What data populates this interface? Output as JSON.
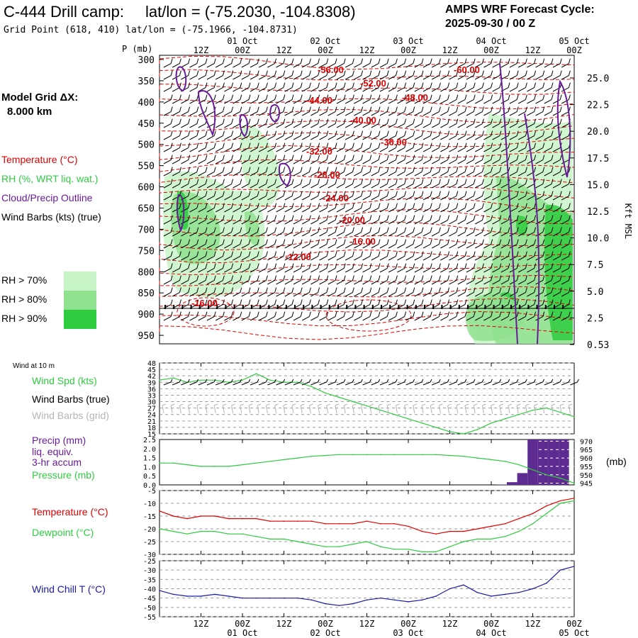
{
  "header": {
    "station": "C-444 Drill camp:",
    "latlon": "lat/lon = (-75.2030, -104.8308)",
    "gridpoint": "Grid Point (618, 410) lat/lon = (-75.1966, -104.8731)",
    "model": "AMPS WRF Forecast Cycle:",
    "cycle": "2025-09-30 / 00  Z"
  },
  "legend": {
    "grid_title": "Model Grid ΔX:",
    "grid_value": "8.000 km",
    "temperature": "Temperature (°C)",
    "rh": "RH (%, WRT liq. wat.)",
    "cloud": "Cloud/Precip Outline",
    "wind": "Wind Barbs (kts) (true)",
    "rh70": "RH > 70%",
    "rh80": "RH > 80%",
    "rh90": "RH > 90%",
    "colors": {
      "rh70": "#c8f5c8",
      "rh80": "#8fe08f",
      "rh90": "#2ecc40",
      "temp": "#e00000",
      "cloud": "#6a1b9a"
    }
  },
  "time_axis": {
    "days_top": [
      "01 Oct",
      "02 Oct",
      "03 Oct",
      "04 Oct",
      "05 Oct"
    ],
    "hours": [
      "12Z",
      "00Z",
      "12Z",
      "00Z",
      "12Z",
      "00Z",
      "12Z",
      "00Z",
      "12Z",
      "00Z"
    ],
    "days_bottom": [
      "01 Oct",
      "02 Oct",
      "03 Oct",
      "04 Oct",
      "05 Oct"
    ]
  },
  "chart_data": [
    {
      "type": "cross-section",
      "ylabel": "P (mb)",
      "ylabel_right": "Kft MSL",
      "pressure_ticks": [
        300,
        350,
        400,
        450,
        500,
        550,
        600,
        650,
        700,
        750,
        800,
        850,
        900,
        950
      ],
      "height_ticks": [
        "25.0",
        "22.5",
        "20.0",
        "17.5",
        "15.0",
        "12.5",
        "10.0",
        "7.5",
        "5.0",
        "2.5",
        "0.53"
      ],
      "temp_labels": [
        "-56.00",
        "-60.00",
        "-52.00",
        "-44.00",
        "-48.00",
        "-40.00",
        "-36.00",
        "-32.00",
        "-28.00",
        "-24.00",
        "-20.00",
        "-16.00",
        "-12.00",
        "-16.00"
      ]
    },
    {
      "type": "line",
      "title": "Wind at 10 m",
      "label_speed": "Wind Spd (kts)",
      "label_true": "Wind Barbs (true)",
      "label_grid": "Wind Barbs (grid)",
      "y_ticks": [
        48,
        45,
        42,
        39,
        36,
        33,
        30,
        27,
        24,
        21,
        18,
        15
      ],
      "ylim": [
        15,
        48
      ],
      "x_hours": [
        -24,
        -20,
        -16,
        -12,
        -8,
        -4,
        0,
        4,
        8,
        12,
        16,
        20,
        24,
        28,
        32,
        36,
        40,
        44,
        48,
        52,
        56,
        60,
        64,
        68,
        72,
        76,
        80,
        84,
        88,
        92,
        96
      ],
      "values": [
        40,
        41,
        39,
        40,
        40,
        39,
        40,
        43,
        40,
        39,
        39,
        37,
        34,
        32,
        30,
        28,
        26,
        24,
        22,
        20,
        18,
        16,
        15,
        17,
        20,
        22,
        24,
        26,
        27,
        25,
        23
      ]
    },
    {
      "type": "bar+line",
      "label_precip": "Precip (mm)",
      "label_liq": "liq. equiv.",
      "label_accum": "3-hr accum",
      "label_pressure": "Pressure (mb)",
      "unit_right": "(mb)",
      "precip_ticks": [
        "2.5",
        "2.0",
        "1.5",
        "1.0",
        "0.5",
        "0.0"
      ],
      "pressure_ticks": [
        970,
        965,
        960,
        955,
        950,
        945
      ],
      "precip_ylim": [
        0,
        2.5
      ],
      "pressure_ylim": [
        944,
        971
      ],
      "precip_bars": [
        {
          "x": 75,
          "v": 0.02
        },
        {
          "x": 78,
          "v": 0.15
        },
        {
          "x": 81,
          "v": 0.65
        },
        {
          "x": 84,
          "v": 2.5
        },
        {
          "x": 87,
          "v": 2.5
        },
        {
          "x": 90,
          "v": 2.5
        },
        {
          "x": 93,
          "v": 2.5
        }
      ],
      "pressure_values": [
        957,
        957,
        956,
        955,
        955,
        955,
        956,
        957,
        958,
        959,
        960,
        961,
        961.5,
        962,
        962,
        962,
        962,
        962,
        962,
        962,
        962,
        961.5,
        961,
        960,
        959,
        958,
        956,
        953,
        950,
        948,
        945
      ]
    },
    {
      "type": "line",
      "label_temp": "Temperature (°C)",
      "label_dew": "Dewpoint (°C)",
      "y_ticks": [
        -5,
        -10,
        -15,
        -20,
        -25,
        -30
      ],
      "ylim": [
        -30,
        -5
      ],
      "temperature": [
        -13,
        -15,
        -16,
        -15,
        -15,
        -16,
        -16,
        -16,
        -17,
        -17,
        -17,
        -17,
        -18,
        -18,
        -18,
        -17,
        -18,
        -18,
        -19,
        -21,
        -22,
        -21,
        -21,
        -20,
        -19,
        -18,
        -16,
        -14,
        -11,
        -9,
        -8
      ],
      "dewpoint": [
        -20,
        -21,
        -22,
        -21,
        -21,
        -22,
        -22,
        -23,
        -24,
        -24,
        -25,
        -26,
        -27,
        -27,
        -26,
        -25,
        -27,
        -28,
        -28,
        -29,
        -29,
        -27,
        -25,
        -24,
        -24,
        -23,
        -21,
        -18,
        -14,
        -10,
        -9
      ]
    },
    {
      "type": "line",
      "label": "Wind Chill T (°C)",
      "y_ticks": [
        -25,
        -30,
        -35,
        -40,
        -45,
        -50,
        -55
      ],
      "ylim": [
        -55,
        -25
      ],
      "values": [
        -41,
        -43,
        -44,
        -44,
        -43,
        -44,
        -45,
        -45,
        -45,
        -45,
        -45,
        -46,
        -48,
        -49,
        -48,
        -46,
        -45,
        -46,
        -47,
        -46,
        -44,
        -40,
        -38,
        -42,
        -44,
        -43,
        -42,
        -40,
        -37,
        -30,
        -28
      ]
    }
  ]
}
